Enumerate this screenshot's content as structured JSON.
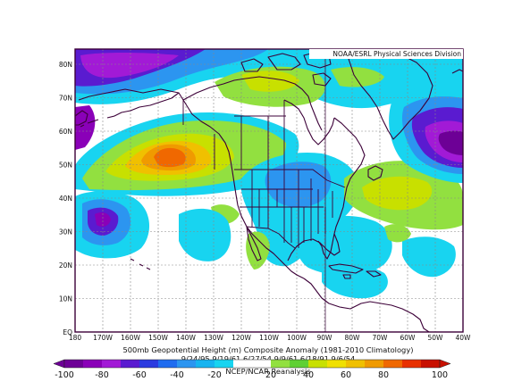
{
  "credit": "NOAA/ESRL Physical Sciences Division",
  "title": "500mb Geopotential Height (m) Composite Anomaly (1981-2010 Climatology)",
  "dates": "9/24/95 9/19/61 6/27/54 9/9/61 6/18/91 9/6/54",
  "source": "NCEP/NCAR Reanalysis",
  "lat_labels": [
    "80N",
    "70N",
    "60N",
    "50N",
    "40N",
    "30N",
    "20N",
    "10N",
    "EQ"
  ],
  "lon_labels": [
    "180",
    "170W",
    "160W",
    "150W",
    "140W",
    "130W",
    "120W",
    "110W",
    "100W",
    "90W",
    "80W",
    "70W",
    "60W",
    "50W",
    "40W"
  ],
  "colorbar": {
    "ticks": [
      "-100",
      "-80",
      "-60",
      "-40",
      "-20",
      "20",
      "40",
      "60",
      "80",
      "100"
    ],
    "colors": [
      "#6d0096",
      "#8a00b8",
      "#a21ad6",
      "#5a1bd0",
      "#2b3be0",
      "#1f6cf0",
      "#2c95f0",
      "#17b4f0",
      "#18d4f0",
      "#ffffff",
      "#ffffff",
      "#92e040",
      "#5fd034",
      "#c8e000",
      "#f0e000",
      "#f0c000",
      "#f09a00",
      "#f06800",
      "#e83000",
      "#c81000"
    ]
  },
  "colors": {
    "frame": "#3c0038",
    "background": "#ffffff"
  }
}
